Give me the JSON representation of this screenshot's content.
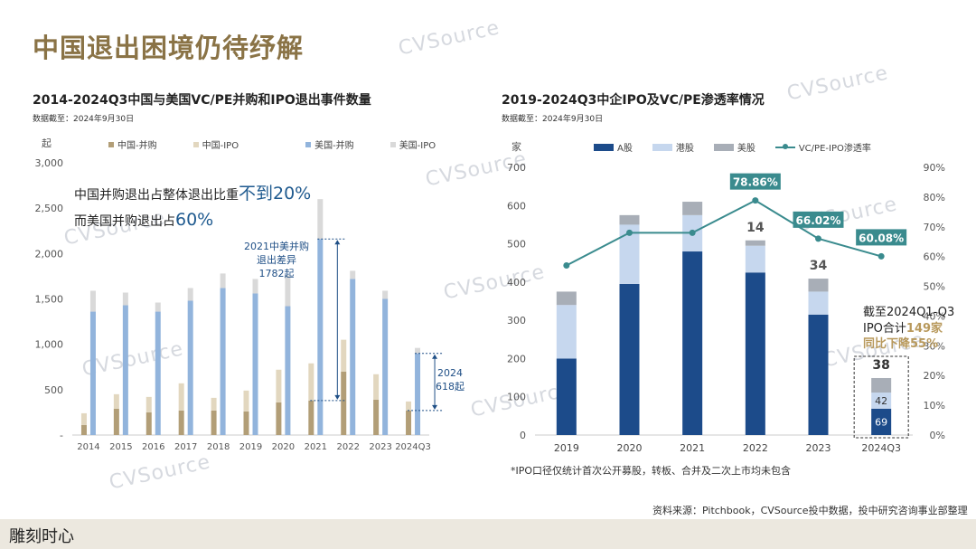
{
  "page_title": "中国退出困境仍待纾解",
  "watermark": "CVSource",
  "chart_data": [
    {
      "type": "bar",
      "title": "2014-2024Q3中国与美国VC/PE并购和IPO退出事件数量",
      "subtitle": "数据截至：2024年9月30日",
      "unit": "起",
      "categories": [
        "2014",
        "2015",
        "2016",
        "2017",
        "2018",
        "2019",
        "2020",
        "2021",
        "2022",
        "2023",
        "2024Q3"
      ],
      "ylim": [
        0,
        3000
      ],
      "yticks": [
        "-",
        "500",
        "1,000",
        "1,500",
        "2,000",
        "2,500",
        "3,000"
      ],
      "ytick_values": [
        0,
        500,
        1000,
        1500,
        2000,
        2500,
        3000
      ],
      "legend": [
        "中国-并购",
        "中国-IPO",
        "美国-并购",
        "美国-IPO"
      ],
      "groups": [
        {
          "stack": "china",
          "series": [
            {
              "name": "中国-并购",
              "color": "#b29e77",
              "values": [
                110,
                290,
                250,
                270,
                270,
                260,
                360,
                380,
                700,
                390,
                270
              ]
            },
            {
              "name": "中国-IPO",
              "color": "#e2d7bf",
              "values": [
                130,
                160,
                170,
                300,
                140,
                230,
                360,
                410,
                350,
                280,
                100
              ]
            }
          ]
        },
        {
          "stack": "us",
          "series": [
            {
              "name": "美国-并购",
              "color": "#92b4dc",
              "values": [
                1360,
                1430,
                1360,
                1480,
                1620,
                1560,
                1420,
                2160,
                1720,
                1500,
                900
              ]
            },
            {
              "name": "美国-IPO",
              "color": "#d9d9d9",
              "values": [
                230,
                140,
                100,
                140,
                160,
                160,
                340,
                440,
                90,
                90,
                60
              ]
            }
          ]
        }
      ],
      "annotations": {
        "callout_line1_pre": "中国并购退出占整体退出比重",
        "callout_line1_big": "不到20%",
        "callout_line2_pre": "而美国并购退出占",
        "callout_line2_big": "60%",
        "gap_2021": "2021中美并购\n退出差异\n1782起",
        "gap_2024": "2024\n618起"
      }
    },
    {
      "type": "bar",
      "title": "2019-2024Q3中企IPO及VC/PE渗透率情况",
      "subtitle": "数据截至：2024年9月30日",
      "unit": "家",
      "categories": [
        "2019",
        "2020",
        "2021",
        "2022",
        "2023",
        "2024Q3"
      ],
      "ylim": [
        0,
        700
      ],
      "yticks": [
        "0",
        "100",
        "200",
        "300",
        "400",
        "500",
        "600",
        "700"
      ],
      "ytick_values": [
        0,
        100,
        200,
        300,
        400,
        500,
        600,
        700
      ],
      "y2lim": [
        0,
        0.9
      ],
      "y2ticks": [
        "0%",
        "10%",
        "20%",
        "30%",
        "40%",
        "50%",
        "60%",
        "70%",
        "80%",
        "90%"
      ],
      "y2tick_values": [
        0,
        0.1,
        0.2,
        0.3,
        0.4,
        0.5,
        0.6,
        0.7,
        0.8,
        0.9
      ],
      "legend": [
        "A股",
        "港股",
        "美股",
        "VC/PE-IPO渗透率"
      ],
      "series": [
        {
          "name": "A股",
          "color": "#1c4b8a",
          "values": [
            200,
            395,
            480,
            425,
            315,
            69
          ]
        },
        {
          "name": "港股",
          "color": "#c6d7ee",
          "values": [
            140,
            155,
            95,
            70,
            60,
            42
          ]
        },
        {
          "name": "美股",
          "color": "#a8aeb7",
          "values": [
            35,
            25,
            35,
            14,
            34,
            38
          ]
        }
      ],
      "line": {
        "name": "VC/PE-IPO渗透率",
        "color": "#3a8b8e",
        "values": [
          0.57,
          0.68,
          0.68,
          0.7886,
          0.6602,
          0.6008
        ]
      },
      "bar_labels": {
        "2022_us": "14",
        "2023_us": "34",
        "2024_a": "69",
        "2024_hk": "42",
        "2024_us": "38"
      },
      "line_labels": {
        "2022": "78.86%",
        "2023": "66.02%",
        "2024Q3": "60.08%"
      },
      "annotation": {
        "line1": "截至2024Q1-Q3",
        "line2_pre": "IPO合计",
        "line2_gold": "149家",
        "line3": "同比下降55%"
      },
      "note": "*IPO口径仅统计首次公开募股，转板、合并及二次上市均未包含"
    }
  ],
  "source": "资料来源：Pitchbook，CVSource投中数据，投中研究咨询事业部整理",
  "footer_logo": "雕刻时心"
}
